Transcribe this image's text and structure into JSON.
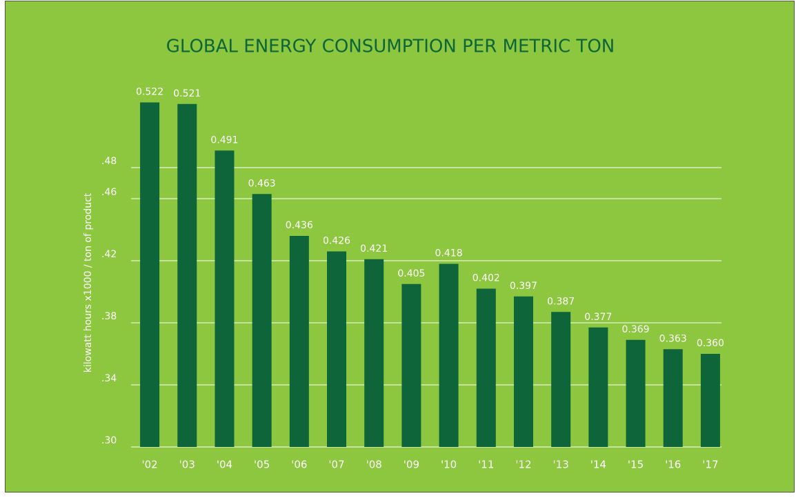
{
  "chart_data": {
    "type": "bar",
    "title": "GLOBAL ENERGY CONSUMPTION PER METRIC TON",
    "y_label": "kilowatt hours x1000 / ton of product",
    "categories": [
      "'02",
      "'03",
      "'04",
      "'05",
      "'06",
      "'07",
      "'08",
      "'09",
      "'10",
      "'11",
      "'12",
      "'13",
      "'14",
      "'15",
      "'16",
      "'17"
    ],
    "values": [
      0.522,
      0.521,
      0.491,
      0.463,
      0.436,
      0.426,
      0.421,
      0.405,
      0.418,
      0.402,
      0.397,
      0.387,
      0.377,
      0.369,
      0.363,
      0.36
    ],
    "value_labels": [
      "0.522",
      "0.521",
      "0.491",
      "0.463",
      "0.436",
      "0.426",
      "0.421",
      "0.405",
      "0.418",
      "0.402",
      "0.397",
      "0.387",
      "0.377",
      "0.369",
      "0.363",
      "0.360"
    ],
    "color": "#0d6539",
    "ylim": [
      0.3,
      0.53
    ],
    "yticks": [
      {
        "value": 0.3,
        "label": ".30"
      },
      {
        "value": 0.34,
        "label": ".34"
      },
      {
        "value": 0.38,
        "label": ".38"
      },
      {
        "value": 0.42,
        "label": ".42"
      },
      {
        "value": 0.46,
        "label": ".46"
      },
      {
        "value": 0.48,
        "label": ".48"
      }
    ],
    "grid": true
  }
}
